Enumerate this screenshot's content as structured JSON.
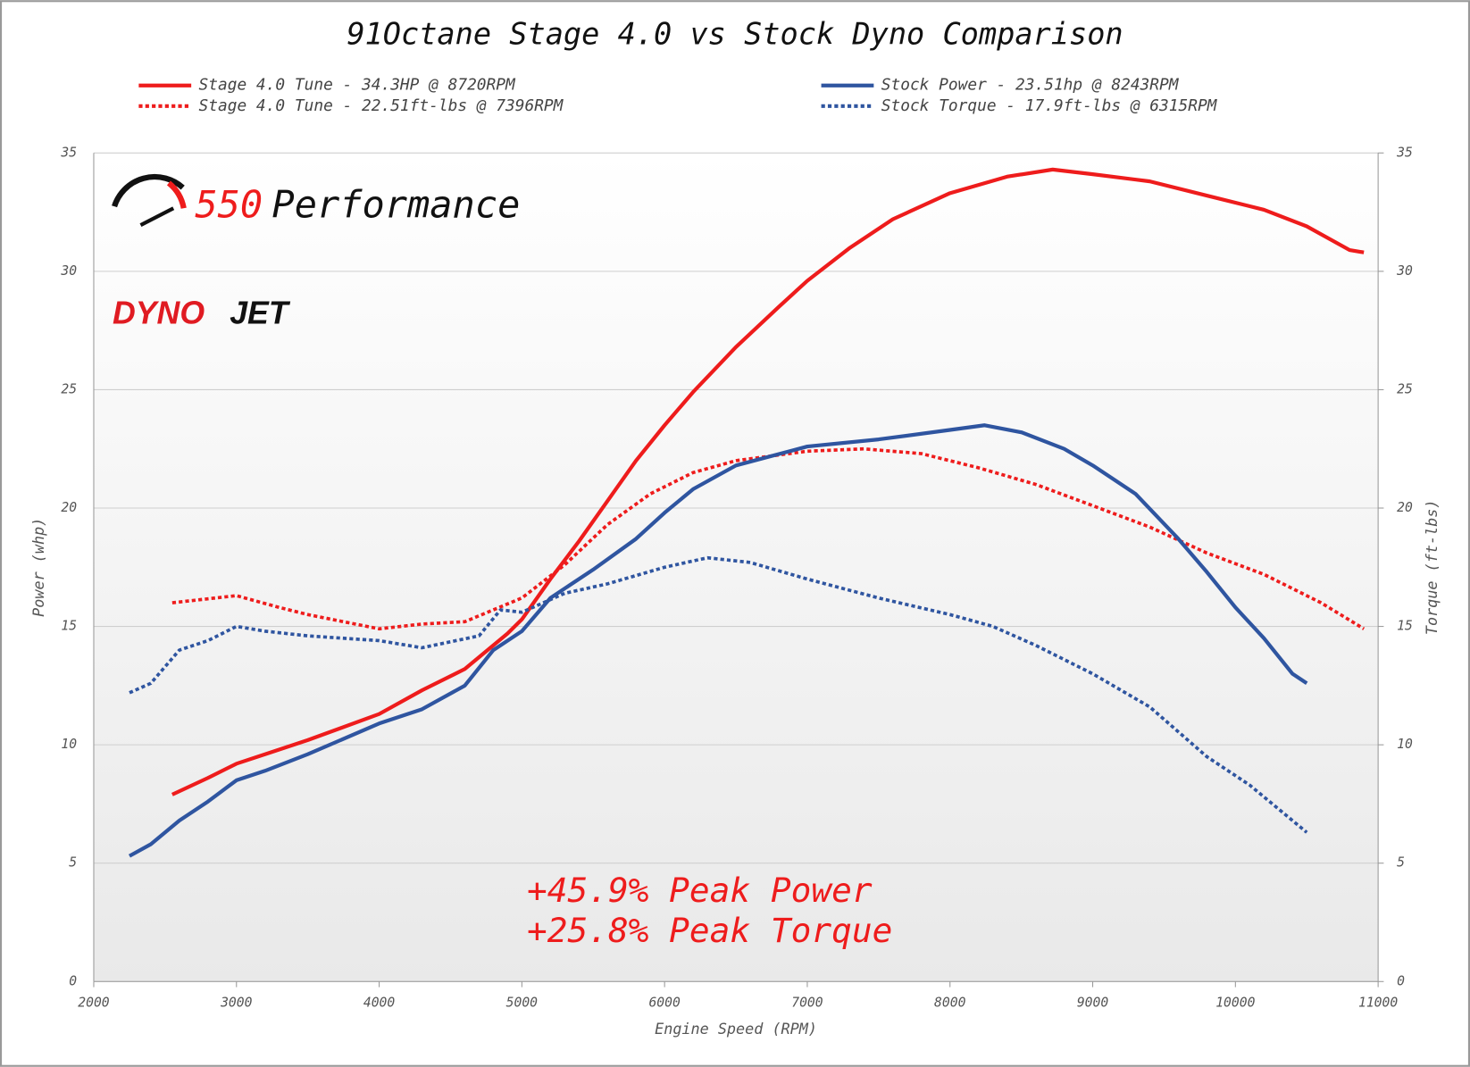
{
  "chart_data": {
    "type": "line",
    "title": "91Octane Stage 4.0 vs Stock Dyno Comparison",
    "logo_number": "550",
    "logo_text": "Performance",
    "brand_red": "DYNO",
    "brand_black": "JET",
    "x_label": "Engine Speed (RPM)",
    "y_label": "Power (whp)",
    "y2_label": "Torque (ft-lbs)",
    "annotations": [
      "+45.9% Peak Power",
      "+25.8% Peak Torque"
    ],
    "xlim": [
      2000,
      11000
    ],
    "xticks": [
      2000,
      3000,
      4000,
      5000,
      6000,
      7000,
      8000,
      9000,
      10000,
      11000
    ],
    "ylim": [
      0,
      35
    ],
    "yticks": [
      0,
      5,
      10,
      15,
      20,
      25,
      30,
      35
    ],
    "y2lim": [
      0,
      35
    ],
    "y2ticks": [
      0,
      5,
      10,
      15,
      20,
      25,
      30,
      35
    ],
    "grid": true,
    "series": [
      {
        "name": "Stage 4.0 Tune - 34.3HP @ 8720RPM",
        "color": "#ee1c1c",
        "line_style": "solid",
        "axis": "y",
        "x": [
          2550,
          2800,
          3000,
          3200,
          3500,
          4000,
          4300,
          4600,
          4900,
          5000,
          5200,
          5400,
          5600,
          5800,
          6000,
          6200,
          6500,
          6800,
          7000,
          7300,
          7600,
          8000,
          8400,
          8720,
          9000,
          9400,
          9800,
          10200,
          10500,
          10800,
          10900
        ],
        "values": [
          7.9,
          8.6,
          9.2,
          9.6,
          10.2,
          11.3,
          12.3,
          13.2,
          14.7,
          15.3,
          17.0,
          18.6,
          20.3,
          22.0,
          23.5,
          24.9,
          26.8,
          28.5,
          29.6,
          31.0,
          32.2,
          33.3,
          34.0,
          34.3,
          34.1,
          33.8,
          33.2,
          32.6,
          31.9,
          30.9,
          30.8
        ]
      },
      {
        "name": "Stage 4.0 Tune - 22.51ft-lbs @ 7396RPM",
        "color": "#ee1c1c",
        "line_style": "dotted",
        "axis": "y2",
        "x": [
          2550,
          3000,
          3300,
          3500,
          4000,
          4300,
          4600,
          5000,
          5300,
          5600,
          5900,
          6200,
          6500,
          7000,
          7396,
          7800,
          8200,
          8600,
          9000,
          9400,
          9800,
          10200,
          10600,
          10900
        ],
        "values": [
          16.0,
          16.3,
          15.8,
          15.5,
          14.9,
          15.1,
          15.2,
          16.2,
          17.6,
          19.3,
          20.6,
          21.5,
          22.0,
          22.4,
          22.5,
          22.3,
          21.7,
          21.0,
          20.1,
          19.2,
          18.1,
          17.2,
          16.0,
          14.9
        ]
      },
      {
        "name": "Stock Power - 23.51hp @ 8243RPM",
        "color": "#2f55a0",
        "line_style": "solid",
        "axis": "y",
        "x": [
          2250,
          2400,
          2600,
          2800,
          3000,
          3200,
          3500,
          4000,
          4300,
          4600,
          4800,
          5000,
          5200,
          5500,
          5800,
          6000,
          6200,
          6500,
          7000,
          7500,
          8000,
          8243,
          8500,
          8800,
          9000,
          9300,
          9600,
          9800,
          10000,
          10200,
          10400,
          10500
        ],
        "values": [
          5.3,
          5.8,
          6.8,
          7.6,
          8.5,
          8.9,
          9.6,
          10.9,
          11.5,
          12.5,
          14.0,
          14.8,
          16.2,
          17.4,
          18.7,
          19.8,
          20.8,
          21.8,
          22.6,
          22.9,
          23.3,
          23.5,
          23.2,
          22.5,
          21.8,
          20.6,
          18.7,
          17.3,
          15.8,
          14.5,
          13.0,
          12.6
        ]
      },
      {
        "name": "Stock Torque - 17.9ft-lbs @ 6315RPM",
        "color": "#2f55a0",
        "line_style": "dotted",
        "axis": "y2",
        "x": [
          2250,
          2400,
          2600,
          2800,
          3000,
          3200,
          3500,
          4000,
          4300,
          4700,
          4850,
          5000,
          5300,
          5600,
          6000,
          6300,
          6600,
          7000,
          7500,
          8000,
          8300,
          8600,
          9000,
          9400,
          9800,
          10100,
          10500
        ],
        "values": [
          12.2,
          12.6,
          14.0,
          14.4,
          15.0,
          14.8,
          14.6,
          14.4,
          14.1,
          14.6,
          15.7,
          15.6,
          16.4,
          16.8,
          17.5,
          17.9,
          17.7,
          17.0,
          16.2,
          15.5,
          15.0,
          14.2,
          13.0,
          11.6,
          9.5,
          8.3,
          6.3
        ]
      }
    ]
  }
}
